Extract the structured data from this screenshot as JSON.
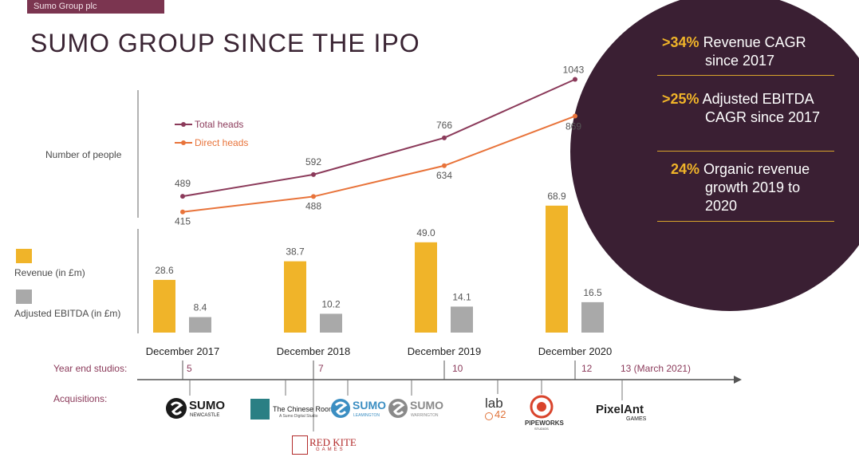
{
  "header": {
    "company_tag": "Sumo Group plc",
    "title": "SUMO GROUP SINCE THE IPO"
  },
  "stats": [
    {
      "pct": ">34%",
      "text_line1": "Revenue CAGR",
      "text_line2": "since 2017"
    },
    {
      "pct": ">25%",
      "text_line1": "Adjusted EBITDA",
      "text_line2": "CAGR since 2017"
    },
    {
      "pct": "24%",
      "text_line1": "Organic revenue",
      "text_line2": "growth 2019 to",
      "text_line3": "2020"
    }
  ],
  "colors": {
    "total_heads": "#8b3a5a",
    "direct_heads": "#e8733a",
    "revenue": "#f0b429",
    "ebitda": "#a9a9a9",
    "panel": "#3a1f33",
    "accent": "#8b3a5a"
  },
  "chart_data": [
    {
      "type": "line",
      "ylabel": "Number of people",
      "categories": [
        "December 2017",
        "December 2018",
        "December 2019",
        "December 2020"
      ],
      "series": [
        {
          "name": "Total heads",
          "values": [
            489,
            592,
            766,
            1043
          ]
        },
        {
          "name": "Direct heads",
          "values": [
            415,
            488,
            634,
            869
          ]
        }
      ],
      "legend": "top-left"
    },
    {
      "type": "bar",
      "categories": [
        "December 2017",
        "December 2018",
        "December 2019",
        "December 2020"
      ],
      "series": [
        {
          "name": "Revenue (in £m)",
          "values": [
            28.6,
            38.7,
            49.0,
            68.9
          ]
        },
        {
          "name": "Adjusted EBITDA (in £m)",
          "values": [
            8.4,
            10.2,
            14.1,
            16.5
          ]
        }
      ],
      "legend": "left"
    }
  ],
  "timeline": {
    "studios_label": "Year end studios:",
    "acquisitions_label": "Acquisitions:",
    "studio_counts": [
      "5",
      "7",
      "10",
      "12",
      "13 (March 2021)"
    ]
  },
  "acquisitions": [
    {
      "name": "SUMO",
      "sub": "NEWCASTLE"
    },
    {
      "name": "The Chinese Room",
      "sub": "A Sumo Digital Studio"
    },
    {
      "name": "SUMO",
      "sub": "LEAMINGTON"
    },
    {
      "name": "SUMO",
      "sub": "WARRINGTON"
    },
    {
      "name": "lab",
      "sub": "42"
    },
    {
      "name": "PIPEWORKS",
      "sub": "STUDIOS"
    },
    {
      "name": "PixelAnt",
      "sub": "GAMES"
    },
    {
      "name": "RED KITE",
      "sub": "GAMES"
    }
  ]
}
